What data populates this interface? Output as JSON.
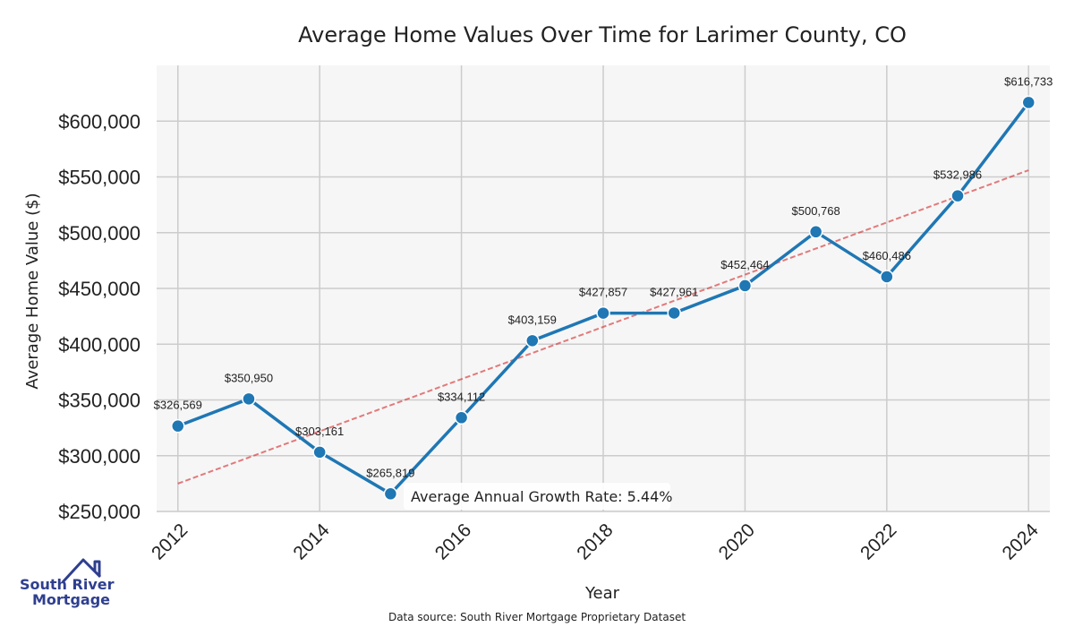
{
  "chart_data": {
    "type": "line",
    "title": "Average Home Values Over Time for Larimer County, CO",
    "xlabel": "Year",
    "ylabel": "Average Home Value ($)",
    "x": [
      2012,
      2013,
      2014,
      2015,
      2016,
      2017,
      2018,
      2019,
      2020,
      2021,
      2022,
      2023,
      2024
    ],
    "values": [
      326569,
      350950,
      303161,
      265819,
      334112,
      403159,
      427857,
      427961,
      452464,
      500768,
      460486,
      532986,
      616733
    ],
    "data_labels": [
      "$326,569",
      "$350,950",
      "$303,161",
      "$265,819",
      "$334,112",
      "$403,159",
      "$427,857",
      "$427,961",
      "$452,464",
      "$500,768",
      "$460,486",
      "$532,986",
      "$616,733"
    ],
    "xticks": [
      "2012",
      "2014",
      "2016",
      "2018",
      "2020",
      "2022",
      "2024"
    ],
    "yticks": [
      "$250,000",
      "$300,000",
      "$350,000",
      "$400,000",
      "$450,000",
      "$500,000",
      "$550,000",
      "$600,000"
    ],
    "ytick_values": [
      250000,
      300000,
      350000,
      400000,
      450000,
      500000,
      550000,
      600000
    ],
    "xlim": [
      2011.7,
      2024.3
    ],
    "ylim": [
      250000,
      650000
    ],
    "trend_line": {
      "x": [
        2012,
        2024
      ],
      "y": [
        275000,
        556000
      ]
    },
    "annotation": "Average Annual Growth Rate: 5.44%",
    "grid": true,
    "line_color": "#1f77b4",
    "trend_color": "#d62728",
    "plot_background": "#f6f6f6",
    "grid_color": "#cccccc"
  },
  "source_note": "Data source: South River Mortgage Proprietary Dataset",
  "logo": {
    "line1": "South River",
    "line2": "Mortgage",
    "color": "#2f3f8f"
  }
}
